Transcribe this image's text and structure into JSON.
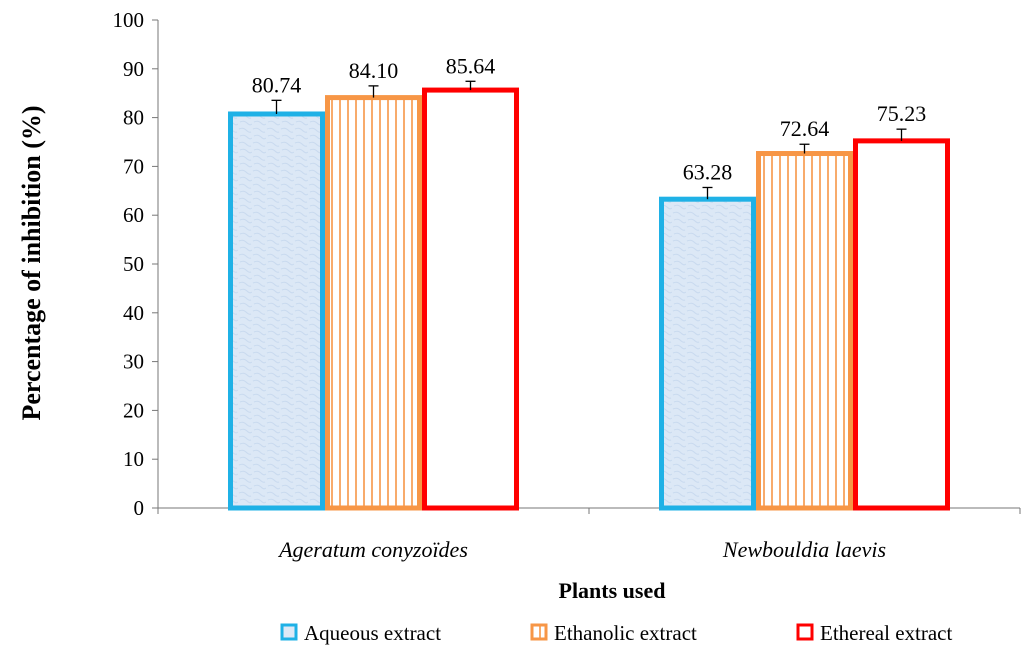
{
  "chart_data": {
    "type": "bar",
    "title": "",
    "xlabel": "Plants used",
    "ylabel": "Percentage  of  inhibition (%)",
    "ylim": [
      0,
      100
    ],
    "yticks": [
      0,
      10,
      20,
      30,
      40,
      50,
      60,
      70,
      80,
      90,
      100
    ],
    "categories": [
      "Ageratum conyzoïdes",
      "Newbouldia laevis"
    ],
    "series": [
      {
        "name": "Aqueous extract",
        "values": [
          80.74,
          63.28
        ],
        "labels": [
          "80.74",
          "63.28"
        ],
        "errors": [
          2.8,
          2.4
        ],
        "color": "#1fb1e6",
        "fill": "#dde9f6"
      },
      {
        "name": "Ethanolic extract",
        "values": [
          84.1,
          72.64
        ],
        "labels": [
          "84.10",
          "72.64"
        ],
        "errors": [
          2.4,
          1.9
        ],
        "color": "#f79646",
        "fill": "#ffffff"
      },
      {
        "name": "Ethereal extract",
        "values": [
          85.64,
          75.23
        ],
        "labels": [
          "85.64",
          "75.23"
        ],
        "errors": [
          1.8,
          2.4
        ],
        "color": "#ff0000",
        "fill": "#ffffff"
      }
    ],
    "grid": false,
    "legend_position": "bottom-right"
  }
}
